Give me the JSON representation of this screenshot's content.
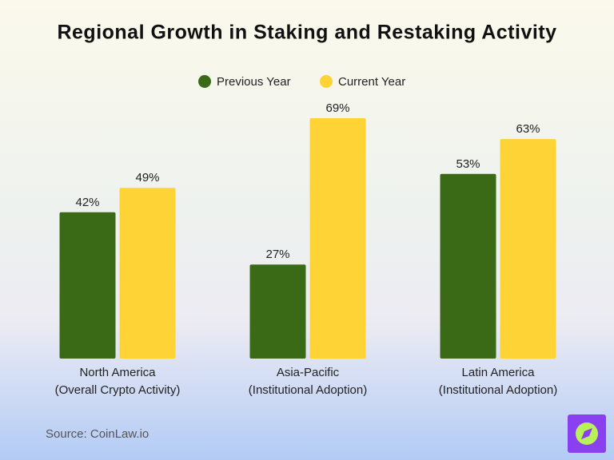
{
  "chart_data": {
    "type": "bar",
    "title": "Regional Growth in Staking and Restaking Activity",
    "categories": [
      [
        "North America",
        "(Overall Crypto Activity)"
      ],
      [
        "Asia-Pacific",
        "(Institutional Adoption)"
      ],
      [
        "Latin America",
        "(Institutional Adoption)"
      ]
    ],
    "series": [
      {
        "name": "Previous Year",
        "color": "#3a6a16",
        "values": [
          42,
          27,
          53
        ],
        "value_labels": [
          "42%",
          "27%",
          "53%"
        ]
      },
      {
        "name": "Current Year",
        "color": "#fdd335",
        "values": [
          49,
          69,
          63
        ],
        "value_labels": [
          "49%",
          "69%",
          "63%"
        ]
      }
    ],
    "source": "Source: CoinLaw.io"
  }
}
